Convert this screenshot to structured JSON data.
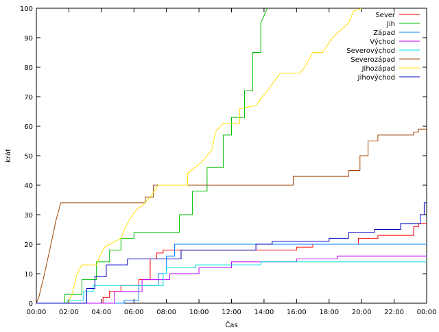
{
  "chart_data": {
    "type": "line",
    "xlabel": "Čas",
    "ylabel": "krát",
    "xlim": [
      0,
      24
    ],
    "ylim": [
      0,
      100
    ],
    "x_tick_labels": [
      "00:00",
      "02:00",
      "04:00",
      "06:00",
      "08:00",
      "10:00",
      "12:00",
      "14:00",
      "16:00",
      "18:00",
      "20:00",
      "22:00",
      "00:00"
    ],
    "y_ticks": [
      0,
      10,
      20,
      30,
      40,
      50,
      60,
      70,
      80,
      90,
      100
    ],
    "grid": false,
    "legend_position": "top-right",
    "series": [
      {
        "name": "Sever",
        "color": "#ff0000",
        "points": [
          [
            0,
            0
          ],
          [
            4.1,
            0
          ],
          [
            4.1,
            2
          ],
          [
            4.5,
            2
          ],
          [
            4.5,
            4
          ],
          [
            5.2,
            4
          ],
          [
            5.2,
            6
          ],
          [
            6.3,
            6
          ],
          [
            6.3,
            8
          ],
          [
            7.0,
            8
          ],
          [
            7.0,
            15
          ],
          [
            7.4,
            15
          ],
          [
            7.4,
            17
          ],
          [
            7.8,
            17
          ],
          [
            7.8,
            18
          ],
          [
            16.0,
            18
          ],
          [
            16.0,
            19
          ],
          [
            17.0,
            19
          ],
          [
            17.0,
            20
          ],
          [
            19.8,
            20
          ],
          [
            19.8,
            22
          ],
          [
            21.0,
            22
          ],
          [
            21.0,
            23
          ],
          [
            23.2,
            23
          ],
          [
            23.2,
            26
          ],
          [
            23.5,
            26
          ],
          [
            23.5,
            27
          ],
          [
            24,
            27
          ]
        ]
      },
      {
        "name": "Jih",
        "color": "#00c000",
        "points": [
          [
            0,
            0
          ],
          [
            1.75,
            0
          ],
          [
            1.75,
            3
          ],
          [
            2.8,
            3
          ],
          [
            2.8,
            8
          ],
          [
            3.7,
            8
          ],
          [
            3.7,
            14
          ],
          [
            4.5,
            14
          ],
          [
            4.5,
            18
          ],
          [
            5.2,
            18
          ],
          [
            5.2,
            22
          ],
          [
            6.0,
            22
          ],
          [
            6.0,
            24
          ],
          [
            8.8,
            24
          ],
          [
            8.8,
            30
          ],
          [
            9.6,
            30
          ],
          [
            9.6,
            38
          ],
          [
            10.5,
            38
          ],
          [
            10.5,
            46
          ],
          [
            11.5,
            46
          ],
          [
            11.5,
            57
          ],
          [
            12.0,
            57
          ],
          [
            12.0,
            63
          ],
          [
            12.8,
            63
          ],
          [
            12.8,
            72
          ],
          [
            13.3,
            72
          ],
          [
            13.3,
            85
          ],
          [
            13.8,
            85
          ],
          [
            13.8,
            95
          ],
          [
            14.2,
            100
          ]
        ]
      },
      {
        "name": "Západ",
        "color": "#0080ff",
        "points": [
          [
            0,
            0
          ],
          [
            5.4,
            0
          ],
          [
            5.4,
            1
          ],
          [
            6.3,
            1
          ],
          [
            6.3,
            6
          ],
          [
            7.5,
            6
          ],
          [
            7.5,
            10
          ],
          [
            8.0,
            10
          ],
          [
            8.0,
            16
          ],
          [
            8.5,
            16
          ],
          [
            8.5,
            20
          ],
          [
            24,
            20
          ]
        ]
      },
      {
        "name": "Východ",
        "color": "#c000ff",
        "points": [
          [
            0,
            0
          ],
          [
            4.8,
            0
          ],
          [
            4.8,
            4
          ],
          [
            6.5,
            4
          ],
          [
            6.5,
            8
          ],
          [
            8.2,
            8
          ],
          [
            8.2,
            10
          ],
          [
            10.0,
            10
          ],
          [
            10.0,
            12
          ],
          [
            12.0,
            12
          ],
          [
            12.0,
            14
          ],
          [
            16.0,
            14
          ],
          [
            16.0,
            15
          ],
          [
            18.5,
            15
          ],
          [
            18.5,
            16
          ],
          [
            24,
            16
          ]
        ]
      },
      {
        "name": "Severovýchod",
        "color": "#00e0e0",
        "points": [
          [
            0,
            0
          ],
          [
            1.9,
            0
          ],
          [
            1.9,
            1
          ],
          [
            2.9,
            1
          ],
          [
            2.9,
            4
          ],
          [
            3.5,
            4
          ],
          [
            3.5,
            6
          ],
          [
            7.8,
            6
          ],
          [
            7.8,
            10
          ],
          [
            8.0,
            10
          ],
          [
            8.0,
            12
          ],
          [
            9.8,
            12
          ],
          [
            9.8,
            13
          ],
          [
            13.8,
            13
          ],
          [
            13.8,
            14
          ],
          [
            24,
            14
          ]
        ]
      },
      {
        "name": "Severozápad",
        "color": "#a04000",
        "points": [
          [
            0,
            0
          ],
          [
            0.15,
            2
          ],
          [
            0.5,
            10
          ],
          [
            0.9,
            20
          ],
          [
            1.2,
            28
          ],
          [
            1.5,
            34
          ],
          [
            6.7,
            34
          ],
          [
            6.7,
            36
          ],
          [
            7.2,
            36
          ],
          [
            7.2,
            40
          ],
          [
            15.8,
            40
          ],
          [
            15.8,
            43
          ],
          [
            19.2,
            43
          ],
          [
            19.2,
            45
          ],
          [
            19.9,
            45
          ],
          [
            19.9,
            50
          ],
          [
            20.4,
            50
          ],
          [
            20.4,
            55
          ],
          [
            21.0,
            55
          ],
          [
            21.0,
            57
          ],
          [
            23.2,
            57
          ],
          [
            23.2,
            58
          ],
          [
            23.5,
            58
          ],
          [
            23.5,
            59
          ],
          [
            24,
            59
          ]
        ]
      },
      {
        "name": "Jihozápad",
        "color": "#ffe000",
        "points": [
          [
            0,
            0
          ],
          [
            1.9,
            0
          ],
          [
            2.2,
            3
          ],
          [
            2.5,
            10
          ],
          [
            2.8,
            13
          ],
          [
            3.7,
            13
          ],
          [
            3.9,
            16
          ],
          [
            4.2,
            19
          ],
          [
            5.2,
            22
          ],
          [
            5.5,
            26
          ],
          [
            5.8,
            29
          ],
          [
            6.2,
            32
          ],
          [
            6.5,
            33
          ],
          [
            7.0,
            36
          ],
          [
            7.5,
            40
          ],
          [
            9.3,
            40
          ],
          [
            9.3,
            44
          ],
          [
            10.2,
            48
          ],
          [
            10.8,
            52
          ],
          [
            11.0,
            58
          ],
          [
            11.5,
            61
          ],
          [
            12.5,
            61
          ],
          [
            12.5,
            66
          ],
          [
            13.5,
            67
          ],
          [
            14.2,
            72
          ],
          [
            15.0,
            78
          ],
          [
            16.2,
            78
          ],
          [
            16.5,
            80
          ],
          [
            17.0,
            85
          ],
          [
            17.6,
            85
          ],
          [
            18.2,
            90
          ],
          [
            19.2,
            95
          ],
          [
            19.5,
            99
          ],
          [
            20.0,
            100
          ]
        ]
      },
      {
        "name": "Jihovýchod",
        "color": "#0000c0",
        "points": [
          [
            0,
            0
          ],
          [
            3.1,
            0
          ],
          [
            3.1,
            5
          ],
          [
            3.6,
            5
          ],
          [
            3.6,
            9
          ],
          [
            4.3,
            9
          ],
          [
            4.3,
            13
          ],
          [
            5.6,
            13
          ],
          [
            5.6,
            15
          ],
          [
            8.9,
            15
          ],
          [
            8.9,
            18
          ],
          [
            13.5,
            18
          ],
          [
            13.5,
            20
          ],
          [
            14.5,
            20
          ],
          [
            14.5,
            21
          ],
          [
            18.0,
            21
          ],
          [
            18.0,
            22
          ],
          [
            19.2,
            22
          ],
          [
            19.2,
            24
          ],
          [
            20.8,
            24
          ],
          [
            20.8,
            25
          ],
          [
            22.4,
            25
          ],
          [
            22.4,
            27
          ],
          [
            23.6,
            27
          ],
          [
            23.6,
            30
          ],
          [
            23.85,
            30
          ],
          [
            23.85,
            34
          ],
          [
            24,
            34
          ]
        ]
      }
    ]
  }
}
